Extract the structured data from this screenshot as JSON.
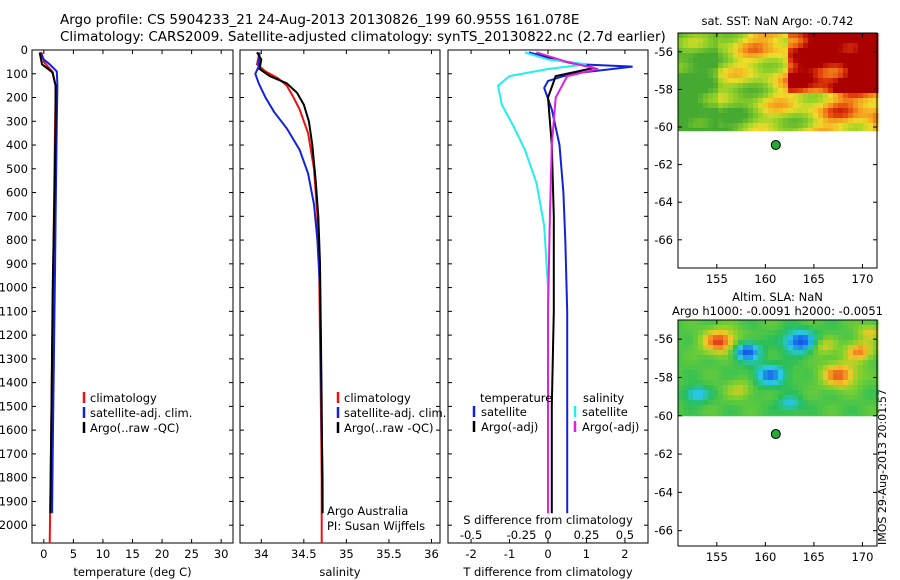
{
  "header": {
    "title_line1": "Argo profile: CS 5904233_21 24-Aug-2013 20130826_199 60.955S 161.078E",
    "title_line2": "Climatology: CARS2009. Satellite-adjusted climatology: synTS_20130822.nc (2.7d earlier)"
  },
  "footer": {
    "stamp": "IMOS 29-Aug-2013 20:01:57"
  },
  "colors": {
    "climatology": "#ee1111",
    "satellite": "#1122dd",
    "argo": "#000000",
    "salinity_satellite": "#22eeee",
    "salinity_argo": "#dd22dd",
    "marker": "#22aa33",
    "sst_hot": "#aa0000",
    "land_na": "#ffffff"
  },
  "chart_data": [
    {
      "id": "temperature",
      "type": "line",
      "xlabel": "temperature (deg C)",
      "ylabel": "",
      "xlim": [
        -2,
        32
      ],
      "xticks": [
        0,
        5,
        10,
        15,
        20,
        25,
        30
      ],
      "xtick_labels": [
        "0",
        "5",
        "10",
        "15",
        "20",
        "25",
        "30"
      ],
      "ylim": [
        0,
        2075
      ],
      "yticks": [
        0,
        100,
        200,
        300,
        400,
        500,
        600,
        700,
        800,
        900,
        1000,
        1100,
        1200,
        1300,
        1400,
        1500,
        1600,
        1700,
        1800,
        1900,
        2000
      ],
      "ytick_labels": [
        "0",
        "100",
        "200",
        "300",
        "400",
        "500",
        "600",
        "700",
        "800",
        "900",
        "1000",
        "1100",
        "1200",
        "1300",
        "1400",
        "1500",
        "1600",
        "1700",
        "1800",
        "1900",
        "2000"
      ],
      "y_reversed": true,
      "legend": [
        "climatology",
        "satellite-adj. clim.",
        "Argo(..raw -QC)"
      ],
      "series": [
        {
          "name": "climatology",
          "color_key": "climatology",
          "x": [
            -0.4,
            0.0,
            1.4,
            2.0,
            2.0,
            1.9,
            1.8,
            1.7,
            1.6,
            1.5,
            1.4,
            1.3,
            1.2,
            1.1,
            1.0
          ],
          "y": [
            10,
            50,
            90,
            150,
            200,
            300,
            500,
            700,
            900,
            1100,
            1300,
            1500,
            1700,
            1900,
            2075
          ]
        },
        {
          "name": "satellite-adj. clim.",
          "color_key": "satellite",
          "x": [
            -0.6,
            0.0,
            1.0,
            2.2,
            2.3,
            2.2,
            2.1,
            2.0,
            1.9,
            1.8,
            1.7,
            1.6,
            1.5,
            1.4
          ],
          "y": [
            10,
            40,
            60,
            90,
            150,
            300,
            500,
            700,
            900,
            1100,
            1300,
            1500,
            1700,
            1950
          ]
        },
        {
          "name": "Argo(..raw -QC)",
          "color_key": "argo",
          "x": [
            -0.7,
            -0.3,
            1.5,
            2.0,
            2.0,
            1.8,
            1.5,
            1.3,
            1.1
          ],
          "y": [
            10,
            60,
            95,
            150,
            300,
            600,
            1000,
            1500,
            1950
          ]
        }
      ]
    },
    {
      "id": "salinity",
      "type": "line",
      "xlabel": "salinity",
      "ylabel": "",
      "xlim": [
        33.75,
        36.1
      ],
      "xticks": [
        34,
        34.5,
        35,
        35.5,
        36
      ],
      "xtick_labels": [
        "34",
        "34.5",
        "35",
        "35.5",
        "36"
      ],
      "ylim": [
        0,
        2075
      ],
      "y_reversed": true,
      "legend": [
        "climatology",
        "satellite-adj. clim.",
        "Argo(..raw -QC)"
      ],
      "annotations": [
        "Argo Australia",
        "PI: Susan Wijffels"
      ],
      "series": [
        {
          "name": "climatology",
          "color_key": "climatology",
          "x": [
            33.98,
            33.95,
            34.05,
            34.2,
            34.3,
            34.38,
            34.45,
            34.55,
            34.62,
            34.66,
            34.68,
            34.69,
            34.7,
            34.71,
            34.71
          ],
          "y": [
            10,
            60,
            90,
            120,
            150,
            200,
            250,
            350,
            500,
            700,
            900,
            1200,
            1500,
            1800,
            2075
          ]
        },
        {
          "name": "satellite-adj. clim.",
          "color_key": "satellite",
          "x": [
            33.98,
            33.97,
            33.93,
            33.97,
            34.05,
            34.15,
            34.3,
            34.45,
            34.55,
            34.62,
            34.66,
            34.69,
            34.7,
            34.71,
            34.72,
            34.72
          ],
          "y": [
            10,
            70,
            100,
            140,
            200,
            260,
            330,
            420,
            520,
            650,
            800,
            1000,
            1300,
            1600,
            1800,
            1950
          ]
        },
        {
          "name": "Argo(..raw -QC)",
          "color_key": "argo",
          "x": [
            33.95,
            34.0,
            33.98,
            34.1,
            34.3,
            34.42,
            34.5,
            34.56,
            34.6,
            34.64,
            34.67,
            34.69,
            34.7,
            34.71,
            34.72
          ],
          "y": [
            10,
            40,
            80,
            110,
            140,
            180,
            230,
            300,
            400,
            550,
            700,
            900,
            1200,
            1500,
            1950
          ]
        }
      ]
    },
    {
      "id": "difference",
      "type": "line",
      "xlabel": "T difference from climatology",
      "x2label": "S difference from climatology",
      "ylabel": "",
      "xlim": [
        -2.6,
        2.6
      ],
      "xticks": [
        -2,
        -1,
        0,
        1,
        2
      ],
      "xtick_labels": [
        "-2",
        "-1",
        "0",
        "1",
        "2"
      ],
      "x2_ticks": [
        -2,
        -1,
        0,
        1,
        2
      ],
      "x2tick_labels": [
        "-0.5",
        "-0.25",
        "0",
        "0.25",
        "0.5"
      ],
      "ylim": [
        0,
        2075
      ],
      "y_reversed": true,
      "legend_temperature": {
        "title": "temperature",
        "items": [
          "satellite",
          "Argo(-adj)"
        ]
      },
      "legend_salinity": {
        "title": "salinity",
        "items": [
          "satellite",
          "Argo(-adj)"
        ]
      },
      "series": [
        {
          "name": "temperature satellite",
          "color_key": "satellite",
          "x": [
            -0.5,
            0.2,
            0.8,
            2.2,
            0.6,
            0.0,
            -0.1,
            0.1,
            0.3,
            0.4,
            0.45,
            0.5,
            0.5,
            0.5,
            0.5
          ],
          "y": [
            10,
            40,
            60,
            70,
            100,
            130,
            160,
            250,
            400,
            600,
            800,
            1100,
            1400,
            1700,
            1950
          ]
        },
        {
          "name": "temperature Argo(-adj)",
          "color_key": "argo",
          "x": [
            -0.3,
            0.3,
            1.2,
            0.2,
            0.0,
            0.1,
            0.15,
            0.15,
            0.1,
            0.1
          ],
          "y": [
            10,
            45,
            75,
            110,
            200,
            400,
            700,
            1100,
            1500,
            1950
          ]
        },
        {
          "name": "salinity satellite",
          "color_key": "salinity_satellite",
          "x": [
            -0.6,
            0.0,
            1.0,
            0.0,
            -1.0,
            -1.3,
            -1.2,
            -0.9,
            -0.6,
            -0.3,
            -0.1,
            0.0,
            0.0,
            0.0,
            0.0
          ],
          "y": [
            10,
            40,
            60,
            80,
            110,
            150,
            230,
            320,
            420,
            560,
            740,
            1000,
            1300,
            1700,
            1950
          ]
        },
        {
          "name": "salinity Argo(-adj)",
          "color_key": "salinity_argo",
          "x": [
            -0.3,
            0.5,
            1.3,
            0.5,
            0.2,
            0.1,
            0.05,
            0.0,
            0.0,
            0.0
          ],
          "y": [
            10,
            50,
            80,
            110,
            200,
            400,
            700,
            1100,
            1500,
            1950
          ]
        }
      ]
    },
    {
      "id": "sst_map",
      "type": "heatmap",
      "title": "sat. SST: NaN Argo: -0.742",
      "xlim": [
        151,
        171.5
      ],
      "ylim": [
        -67.5,
        -55
      ],
      "xticks": [
        155,
        160,
        165,
        170
      ],
      "xtick_labels": [
        "155",
        "160",
        "165",
        "170"
      ],
      "yticks": [
        -56,
        -58,
        -60,
        -62,
        -64,
        -66
      ],
      "ytick_labels": [
        "-56",
        "-58",
        "-60",
        "-62",
        "-64",
        "-66"
      ],
      "data_extent_lat": [
        -60.2,
        -55
      ],
      "marker": {
        "lon": 161.078,
        "lat": -60.955
      }
    },
    {
      "id": "sla_map",
      "type": "heatmap",
      "title": "Altim. SLA: NaN",
      "subtitle": "Argo h1000: -0.0091 h2000: -0.0051",
      "xlim": [
        151,
        171.5
      ],
      "ylim": [
        -66.8,
        -55
      ],
      "xticks": [
        155,
        160,
        165,
        170
      ],
      "xtick_labels": [
        "155",
        "160",
        "165",
        "170"
      ],
      "yticks": [
        -56,
        -58,
        -60,
        -62,
        -64,
        -66
      ],
      "ytick_labels": [
        "-56",
        "-58",
        "-60",
        "-62",
        "-64",
        "-66"
      ],
      "data_extent_lat": [
        -60,
        -55
      ],
      "marker": {
        "lon": 161.078,
        "lat": -60.955
      }
    }
  ]
}
